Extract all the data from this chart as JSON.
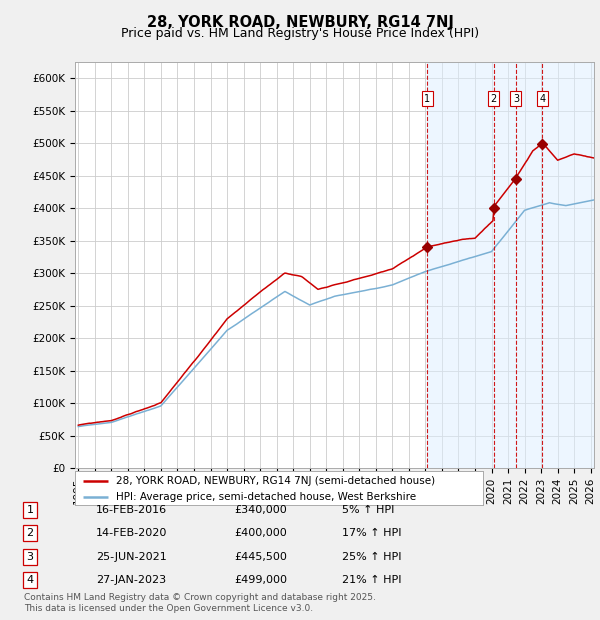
{
  "title": "28, YORK ROAD, NEWBURY, RG14 7NJ",
  "subtitle": "Price paid vs. HM Land Registry's House Price Index (HPI)",
  "ylabel_ticks": [
    "£0",
    "£50K",
    "£100K",
    "£150K",
    "£200K",
    "£250K",
    "£300K",
    "£350K",
    "£400K",
    "£450K",
    "£500K",
    "£550K",
    "£600K"
  ],
  "ylim": [
    0,
    625000
  ],
  "ytick_values": [
    0,
    50000,
    100000,
    150000,
    200000,
    250000,
    300000,
    350000,
    400000,
    450000,
    500000,
    550000,
    600000
  ],
  "xlim_start": 1994.8,
  "xlim_end": 2026.2,
  "background_color": "#f0f0f0",
  "chart_bg_color": "#ffffff",
  "grid_color": "#cccccc",
  "red_line_color": "#cc0000",
  "blue_line_color": "#7ab0d4",
  "shade_color": "#ddeeff",
  "sale_marker_color": "#990000",
  "vline_color": "#cc0000",
  "transactions": [
    {
      "num": 1,
      "date_x": 2016.12,
      "price": 340000,
      "label": "1",
      "date_str": "16-FEB-2016",
      "price_str": "£340,000",
      "pct": "5%"
    },
    {
      "num": 2,
      "date_x": 2020.12,
      "price": 400000,
      "label": "2",
      "date_str": "14-FEB-2020",
      "price_str": "£400,000",
      "pct": "17%"
    },
    {
      "num": 3,
      "date_x": 2021.48,
      "price": 445500,
      "label": "3",
      "date_str": "25-JUN-2021",
      "price_str": "£445,500",
      "pct": "25%"
    },
    {
      "num": 4,
      "date_x": 2023.07,
      "price": 499000,
      "label": "4",
      "date_str": "27-JAN-2023",
      "price_str": "£499,000",
      "pct": "21%"
    }
  ],
  "legend_line1": "28, YORK ROAD, NEWBURY, RG14 7NJ (semi-detached house)",
  "legend_line2": "HPI: Average price, semi-detached house, West Berkshire",
  "footer": "Contains HM Land Registry data © Crown copyright and database right 2025.\nThis data is licensed under the Open Government Licence v3.0.",
  "title_fontsize": 10.5,
  "subtitle_fontsize": 9,
  "tick_fontsize": 7.5,
  "legend_fontsize": 7.5,
  "footer_fontsize": 6.5,
  "table_fontsize": 8
}
